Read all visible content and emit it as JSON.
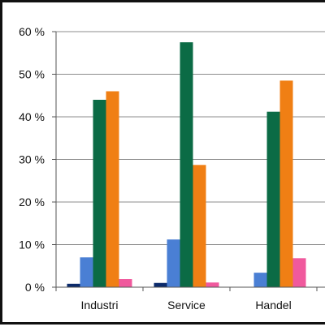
{
  "chart_data": {
    "type": "bar",
    "categories": [
      "Industri",
      "Service",
      "Handel"
    ],
    "series": [
      {
        "color": "#0b2a6b",
        "values": [
          0.8,
          1.0,
          0.0
        ]
      },
      {
        "color": "#4a7fd4",
        "values": [
          7.0,
          11.2,
          3.4
        ]
      },
      {
        "color": "#0b6b45",
        "values": [
          44.0,
          57.5,
          41.2
        ]
      },
      {
        "color": "#f07f14",
        "values": [
          46.0,
          28.7,
          48.5
        ]
      },
      {
        "color": "#f0599d",
        "values": [
          1.9,
          1.1,
          6.8
        ]
      }
    ],
    "ylim": [
      0,
      60
    ],
    "yticks": [
      0,
      10,
      20,
      30,
      40,
      50,
      60
    ],
    "ytick_labels": [
      "0 %",
      "10 %",
      "20 %",
      "30 %",
      "40 %",
      "50 %",
      "60 %"
    ],
    "grid": "horizontal",
    "legend": "none"
  }
}
